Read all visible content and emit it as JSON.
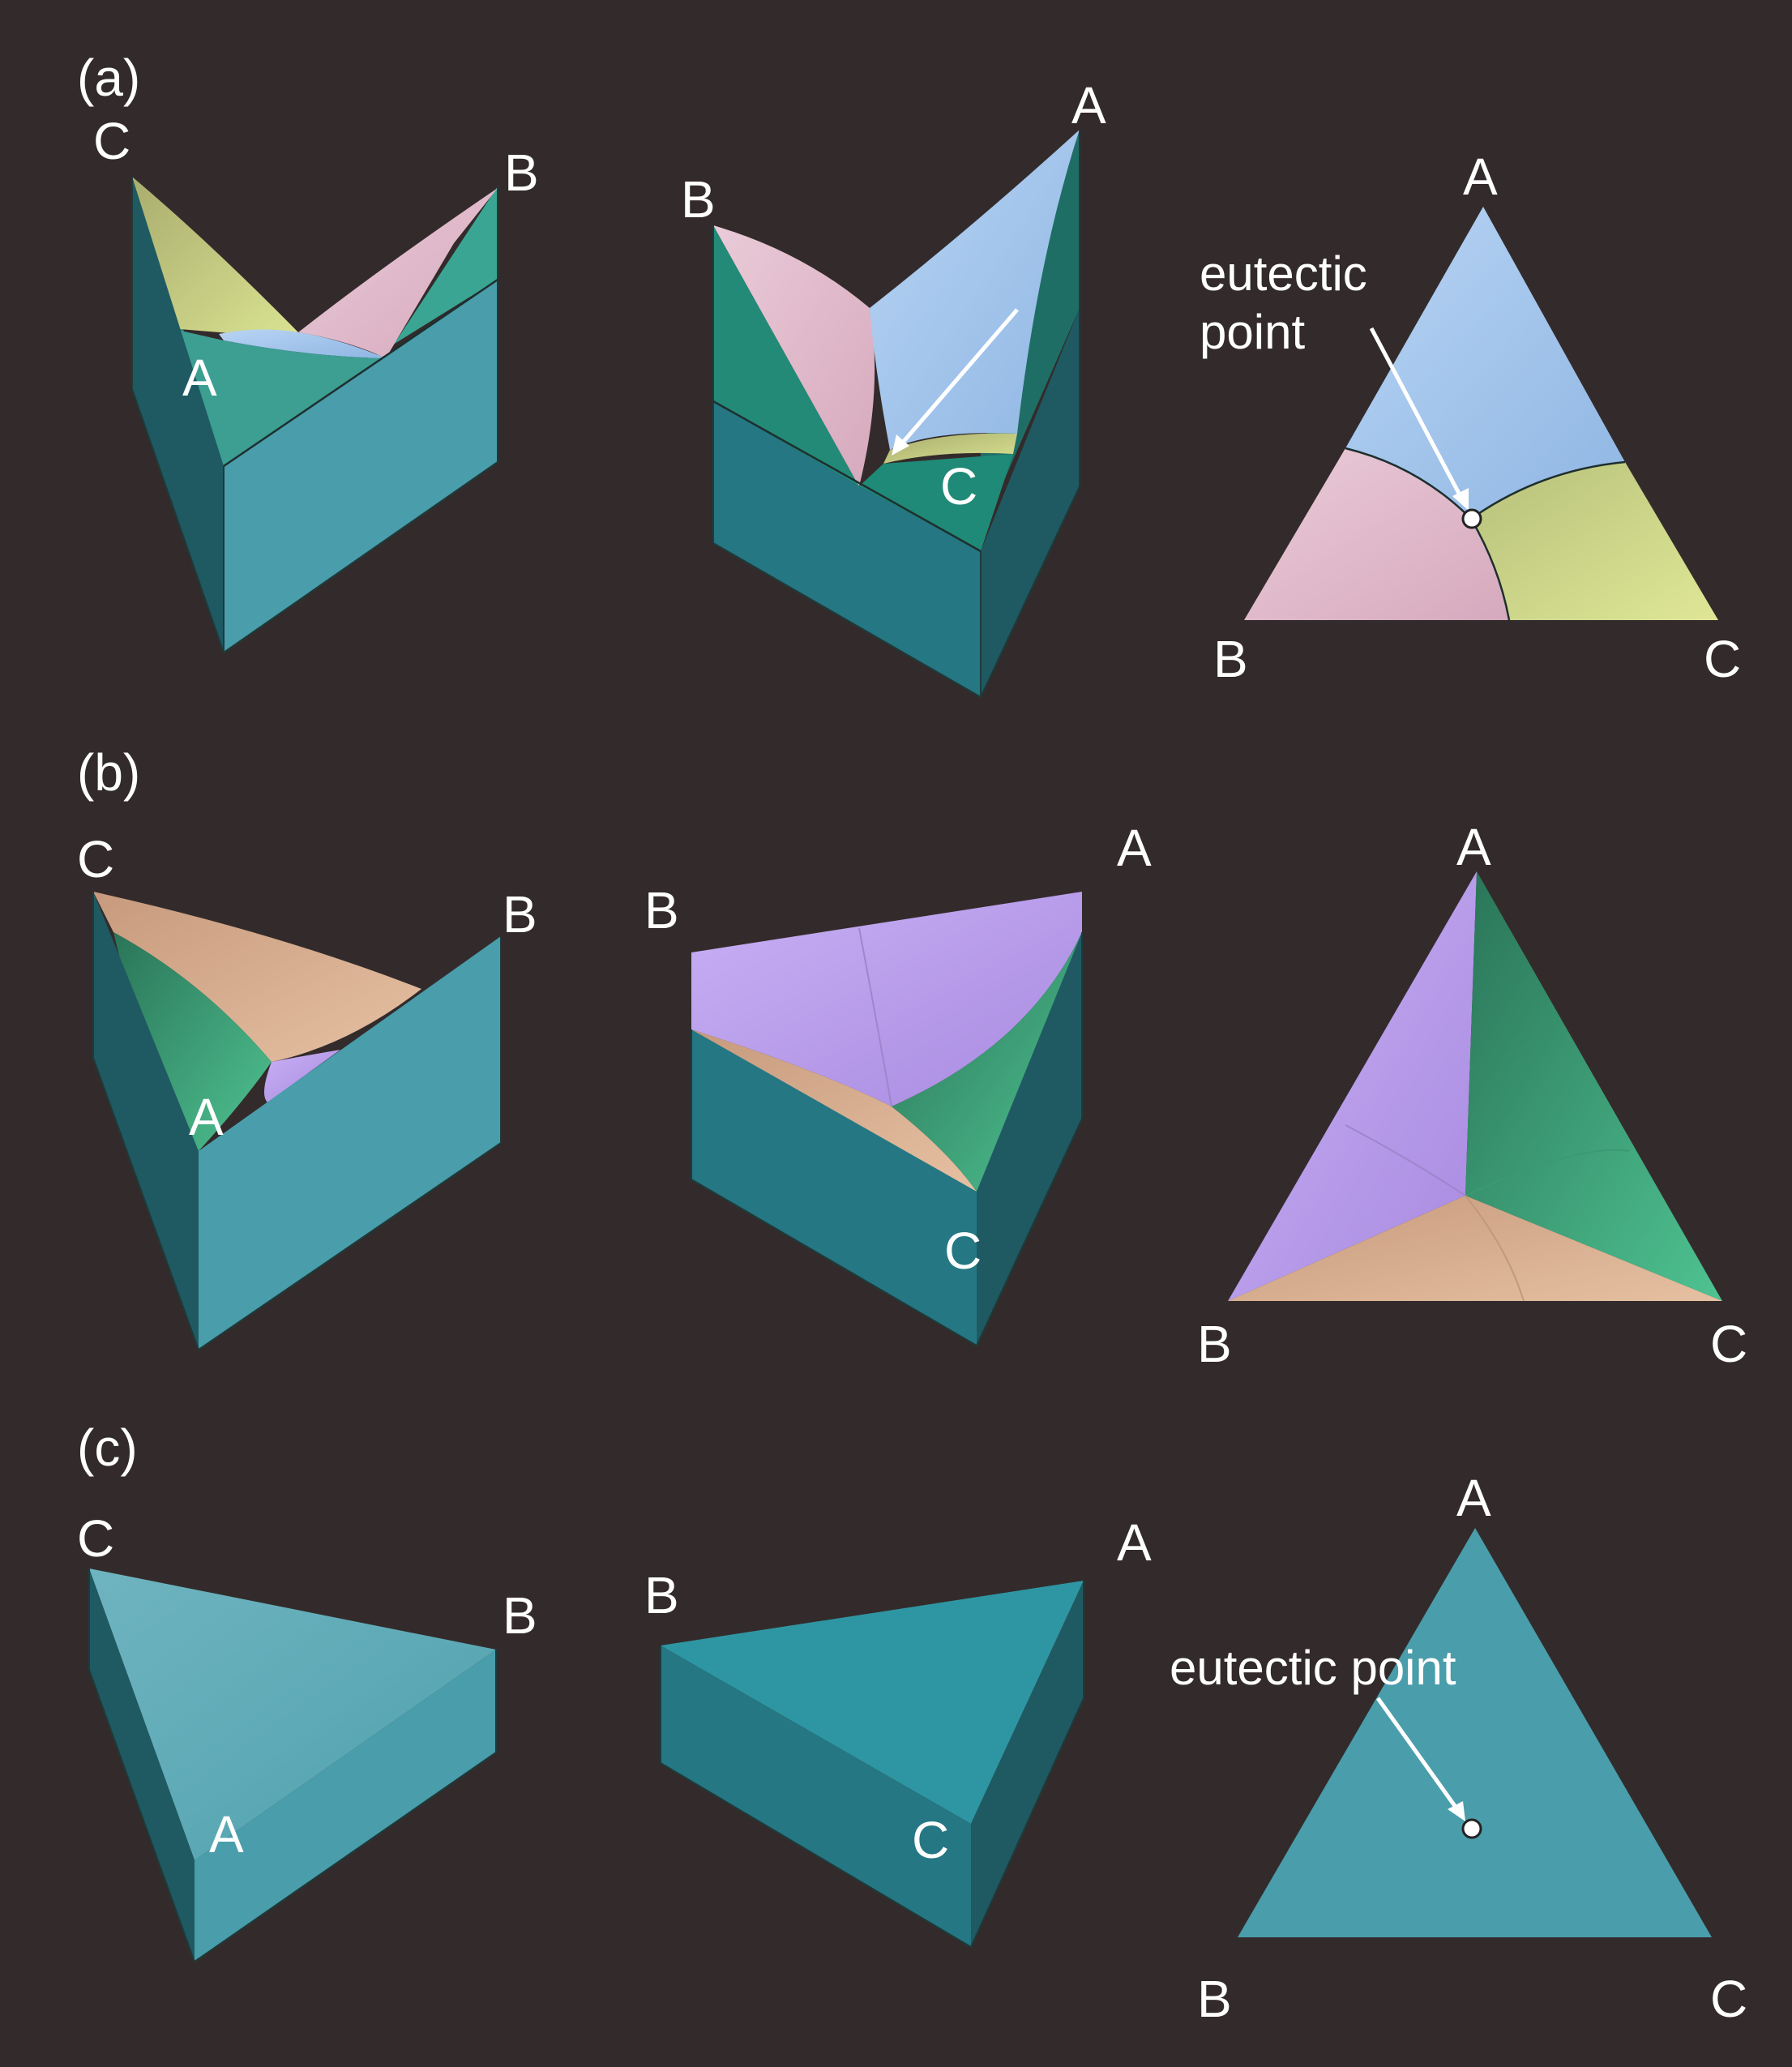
{
  "panels": {
    "a": {
      "label": "(a)",
      "left_prism": {
        "top_left": "C",
        "top_right": "B",
        "front": "A"
      },
      "mid_prism": {
        "top_left": "B",
        "top_right": "A",
        "front": "C"
      },
      "triangle": {
        "apex": "A",
        "bottom_left": "B",
        "bottom_right": "C",
        "annotation_line1": "eutectic",
        "annotation_line2": "point"
      }
    },
    "b": {
      "label": "(b)",
      "left_prism": {
        "top_left": "C",
        "top_right": "B",
        "front": "A"
      },
      "mid_prism": {
        "top_left": "B",
        "top_right": "A",
        "front": "C"
      },
      "triangle": {
        "apex": "A",
        "bottom_left": "B",
        "bottom_right": "C"
      }
    },
    "c": {
      "label": "(c)",
      "left_prism": {
        "top_left": "C",
        "top_right": "B",
        "front": "A"
      },
      "mid_prism": {
        "top_left": "B",
        "top_right": "A",
        "front": "C"
      },
      "triangle": {
        "apex": "A",
        "bottom_left": "B",
        "bottom_right": "C",
        "annotation": "eutectic point"
      }
    }
  },
  "colors": {
    "background": "#332b2b",
    "phase_A": "#a5c6ec",
    "phase_B": "#e2b9cc",
    "phase_C": "#cfd98f",
    "prism_side_light": "#4f9fae",
    "prism_side_dark": "#1e5d66",
    "liquid_green": "#2f9a82",
    "phase_purple": "#bba0ee",
    "phase_tan": "#d2aa8c",
    "phase_green_b": "#3ea57b"
  }
}
